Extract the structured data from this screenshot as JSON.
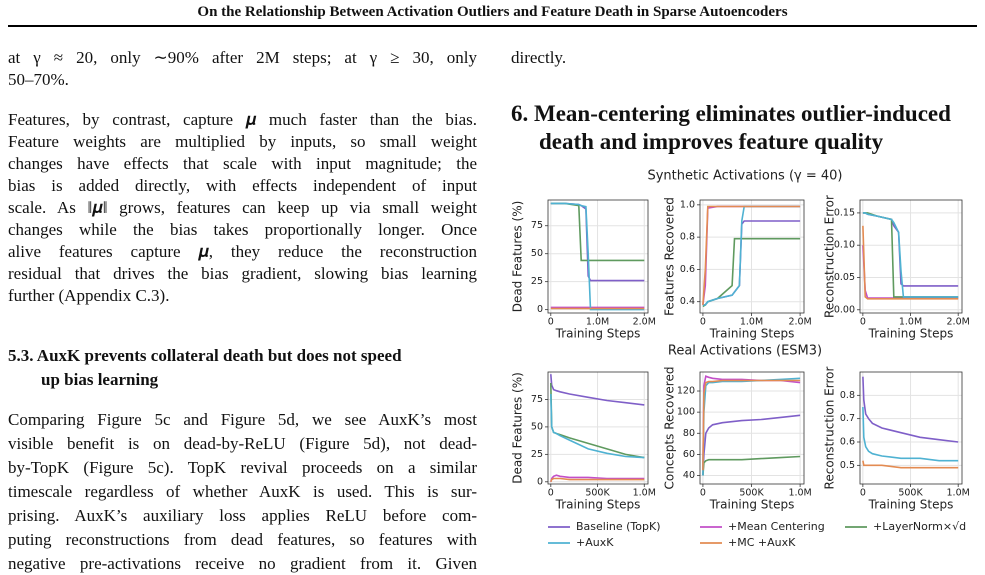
{
  "header": {
    "title": "On the Relationship Between Activation Outliers and Feature Death in Sparse Autoencoders"
  },
  "left": {
    "p1": [
      "at γ ≈ 20, only ∼90% after 2M steps; at γ ≥ 30, only",
      "50–70%."
    ],
    "p2": [
      "Features, by contrast, capture 𝝁 much faster than the bias.",
      "Feature weights are multiplied by inputs, so small weight",
      "changes have effects that scale with input magnitude; the",
      "bias is added directly, with effects independent of input",
      "scale. As ‖𝝁‖ grows, features can keep up via small weight",
      "changes while the bias takes proportionally longer. Once",
      "alive features capture 𝝁, they reduce the reconstruction",
      "residual that drives the bias gradient, slowing bias learning",
      "further (Appendix C.3)."
    ],
    "heading": [
      "5.3. AuxK prevents collateral death but does not speed",
      "up bias learning"
    ],
    "p3": [
      "Comparing Figure 5c and Figure 5d, we see AuxK’s most",
      "visible benefit is on dead-by-ReLU (Figure 5d), not dead-",
      "by-TopK (Figure 5c). TopK revival proceeds on a similar",
      "timescale regardless of whether AuxK is used. This is sur-",
      "prising. AuxK’s auxiliary loss applies ReLU before com-",
      "puting reconstructions from dead features, so features with",
      "negative pre-activations receive no gradient from it. Given"
    ]
  },
  "right": {
    "p1": [
      "directly."
    ],
    "heading": [
      "6. Mean-centering eliminates outlier-induced",
      "death and improves feature quality"
    ]
  },
  "figure": {
    "row_titles": [
      "Synthetic Activations (γ = 40)",
      "Real Activations (ESM3)"
    ],
    "legend": [
      {
        "name": "Baseline (TopK)",
        "color": "#7f5fc8"
      },
      {
        "name": "+Mean Centering",
        "color": "#c24fc8"
      },
      {
        "name": "+LayerNorm×√d",
        "color": "#5f9a5f"
      },
      {
        "name": "+AuxK",
        "color": "#4fb2d2"
      },
      {
        "name": "+MC +AuxK",
        "color": "#e38b52"
      }
    ],
    "panels": [
      {
        "ylabel": "Dead Features (%)",
        "xlabel": "Training Steps",
        "xlim": [
          -60000,
          2080000
        ],
        "xticks": [
          0,
          {
            "value": 1000000,
            "label": "1.0M"
          },
          {
            "value": 2000000,
            "label": "2.0M"
          }
        ],
        "ylim": [
          -3,
          98
        ],
        "yticks": [
          0,
          25,
          50,
          75
        ],
        "x": [
          0,
          50000,
          100000,
          300000,
          600000,
          650000,
          750000,
          800000,
          850000,
          900000,
          1500000,
          2000000
        ],
        "series": [
          {
            "color": "#7f5fc8",
            "values": [
              95,
              95,
              95,
              95,
              94,
              93,
              90,
              30,
              26,
              26,
              26,
              26
            ]
          },
          {
            "color": "#c24fc8",
            "values": [
              2,
              2,
              2,
              2,
              2,
              2,
              2,
              2,
              2,
              2,
              2,
              2
            ]
          },
          {
            "color": "#5f9a5f",
            "values": [
              95,
              95,
              95,
              95,
              93,
              44,
              44,
              44,
              44,
              44,
              44,
              44
            ]
          },
          {
            "color": "#4fb2d2",
            "values": [
              95,
              95,
              95,
              95,
              94,
              93,
              92,
              50,
              0,
              0,
              0,
              0
            ]
          },
          {
            "color": "#e38b52",
            "values": [
              1,
              1,
              1,
              1,
              1,
              1,
              1,
              1,
              1,
              1,
              1,
              1
            ]
          }
        ]
      },
      {
        "ylabel": "Features Recovered",
        "xlabel": "Training Steps",
        "xlim": [
          -60000,
          2080000
        ],
        "xticks": [
          0,
          {
            "value": 1000000,
            "label": "1.0M"
          },
          {
            "value": 2000000,
            "label": "2.0M"
          }
        ],
        "ylim": [
          0.33,
          1.03
        ],
        "yticks": [
          0.4,
          0.6,
          0.8,
          {
            "value": 1,
            "label": "1.0"
          }
        ],
        "x": [
          0,
          50000,
          100000,
          300000,
          600000,
          650000,
          750000,
          800000,
          850000,
          900000,
          1500000,
          2000000
        ],
        "series": [
          {
            "color": "#7f5fc8",
            "values": [
              0.38,
              0.38,
              0.4,
              0.42,
              0.44,
              0.46,
              0.5,
              0.88,
              0.9,
              0.9,
              0.9,
              0.9
            ]
          },
          {
            "color": "#c24fc8",
            "values": [
              0.38,
              0.5,
              0.98,
              0.99,
              0.99,
              0.99,
              0.99,
              0.99,
              0.99,
              0.99,
              0.99,
              0.99
            ]
          },
          {
            "color": "#5f9a5f",
            "values": [
              0.37,
              0.38,
              0.4,
              0.42,
              0.5,
              0.79,
              0.79,
              0.79,
              0.79,
              0.79,
              0.79,
              0.79
            ]
          },
          {
            "color": "#4fb2d2",
            "values": [
              0.38,
              0.38,
              0.4,
              0.42,
              0.44,
              0.46,
              0.5,
              0.9,
              0.99,
              0.99,
              0.99,
              0.99
            ]
          },
          {
            "color": "#e38b52",
            "values": [
              0.38,
              0.6,
              0.99,
              0.99,
              0.99,
              0.99,
              0.99,
              0.99,
              0.99,
              0.99,
              0.99,
              0.99
            ]
          }
        ]
      },
      {
        "ylabel": "Reconstruction Error",
        "xlabel": "Training Steps",
        "xlim": [
          -60000,
          2080000
        ],
        "xticks": [
          0,
          {
            "value": 1000000,
            "label": "1.0M"
          },
          {
            "value": 2000000,
            "label": "2.0M"
          }
        ],
        "ylim": [
          -0.005,
          0.17
        ],
        "yticks": [
          {
            "value": 0,
            "label": "0.00"
          },
          0.05,
          {
            "value": 0.1,
            "label": "0.10"
          },
          0.15
        ],
        "x": [
          0,
          50000,
          100000,
          300000,
          600000,
          650000,
          750000,
          800000,
          850000,
          900000,
          1500000,
          2000000
        ],
        "series": [
          {
            "color": "#7f5fc8",
            "values": [
              0.15,
              0.15,
              0.148,
              0.145,
              0.14,
              0.13,
              0.12,
              0.04,
              0.037,
              0.037,
              0.037,
              0.037
            ]
          },
          {
            "color": "#c24fc8",
            "values": [
              0.1,
              0.03,
              0.018,
              0.018,
              0.018,
              0.018,
              0.018,
              0.018,
              0.018,
              0.018,
              0.018,
              0.018
            ]
          },
          {
            "color": "#5f9a5f",
            "values": [
              0.15,
              0.15,
              0.15,
              0.145,
              0.14,
              0.02,
              0.02,
              0.02,
              0.02,
              0.02,
              0.02,
              0.02
            ]
          },
          {
            "color": "#4fb2d2",
            "values": [
              0.15,
              0.15,
              0.148,
              0.145,
              0.14,
              0.135,
              0.12,
              0.06,
              0.02,
              0.02,
              0.02,
              0.02
            ]
          },
          {
            "color": "#e38b52",
            "values": [
              0.13,
              0.02,
              0.017,
              0.017,
              0.017,
              0.017,
              0.017,
              0.017,
              0.017,
              0.017,
              0.017,
              0.017
            ]
          }
        ]
      },
      {
        "ylabel": "Dead Features (%)",
        "xlabel": "Training Steps",
        "xlim": [
          -30000,
          1040000
        ],
        "xticks": [
          0,
          {
            "value": 500000,
            "label": "500K"
          },
          {
            "value": 1000000,
            "label": "1.0M"
          }
        ],
        "ylim": [
          -2,
          100
        ],
        "yticks": [
          0,
          25,
          50,
          75
        ],
        "x": [
          0,
          10000,
          30000,
          60000,
          100000,
          200000,
          400000,
          600000,
          800000,
          1000000
        ],
        "series": [
          {
            "color": "#7f5fc8",
            "values": [
              98,
              88,
              84,
              83,
              82,
              80,
              77,
              74,
              72,
              70
            ]
          },
          {
            "color": "#c24fc8",
            "values": [
              0,
              3,
              5,
              6,
              5,
              4,
              4,
              3,
              3,
              3
            ]
          },
          {
            "color": "#5f9a5f",
            "values": [
              90,
              50,
              45,
              44,
              43,
              40,
              35,
              30,
              25,
              22
            ]
          },
          {
            "color": "#4fb2d2",
            "values": [
              80,
              50,
              45,
              44,
              42,
              38,
              30,
              26,
              23,
              22
            ]
          },
          {
            "color": "#e38b52",
            "values": [
              0,
              2,
              3,
              3,
              3,
              2,
              2,
              2,
              2,
              2
            ]
          }
        ]
      },
      {
        "ylabel": "Concepts Recovered",
        "xlabel": "Training Steps",
        "xlim": [
          -30000,
          1040000
        ],
        "xticks": [
          0,
          {
            "value": 500000,
            "label": "500K"
          },
          {
            "value": 1000000,
            "label": "1.0M"
          }
        ],
        "ylim": [
          32,
          138
        ],
        "yticks": [
          40,
          60,
          80,
          100,
          120
        ],
        "x": [
          0,
          10000,
          30000,
          60000,
          100000,
          200000,
          400000,
          600000,
          800000,
          1000000
        ],
        "series": [
          {
            "color": "#7f5fc8",
            "values": [
              40,
              60,
              80,
              85,
              88,
              90,
              92,
              93,
              95,
              97
            ]
          },
          {
            "color": "#c24fc8",
            "values": [
              45,
              125,
              134,
              133,
              132,
              131,
              131,
              130,
              130,
              128
            ]
          },
          {
            "color": "#5f9a5f",
            "values": [
              40,
              52,
              54,
              55,
              55,
              55,
              55,
              56,
              57,
              58
            ]
          },
          {
            "color": "#4fb2d2",
            "values": [
              40,
              100,
              125,
              128,
              128,
              129,
              129,
              130,
              131,
              132
            ]
          },
          {
            "color": "#e38b52",
            "values": [
              45,
              118,
              128,
              129,
              129,
              130,
              130,
              130,
              130,
              130
            ]
          }
        ]
      },
      {
        "ylabel": "Reconstruction Error",
        "xlabel": "Training Steps",
        "xlim": [
          -30000,
          1040000
        ],
        "xticks": [
          0,
          {
            "value": 500000,
            "label": "500K"
          },
          {
            "value": 1000000,
            "label": "1.0M"
          }
        ],
        "ylim": [
          0.42,
          0.9
        ],
        "yticks": [
          0.5,
          0.6,
          0.7,
          0.8
        ],
        "x": [
          0,
          10000,
          30000,
          60000,
          100000,
          200000,
          400000,
          600000,
          800000,
          1000000
        ],
        "series": [
          {
            "color": "#7f5fc8",
            "values": [
              0.88,
              0.78,
              0.72,
              0.7,
              0.68,
              0.66,
              0.64,
              0.62,
              0.61,
              0.6
            ]
          },
          {
            "color": "#4fb2d2",
            "values": [
              0.75,
              0.62,
              0.58,
              0.56,
              0.55,
              0.54,
              0.53,
              0.53,
              0.52,
              0.52
            ]
          },
          {
            "color": "#e38b52",
            "values": [
              0.52,
              0.5,
              0.5,
              0.5,
              0.5,
              0.5,
              0.49,
              0.49,
              0.49,
              0.49
            ]
          }
        ]
      }
    ]
  }
}
